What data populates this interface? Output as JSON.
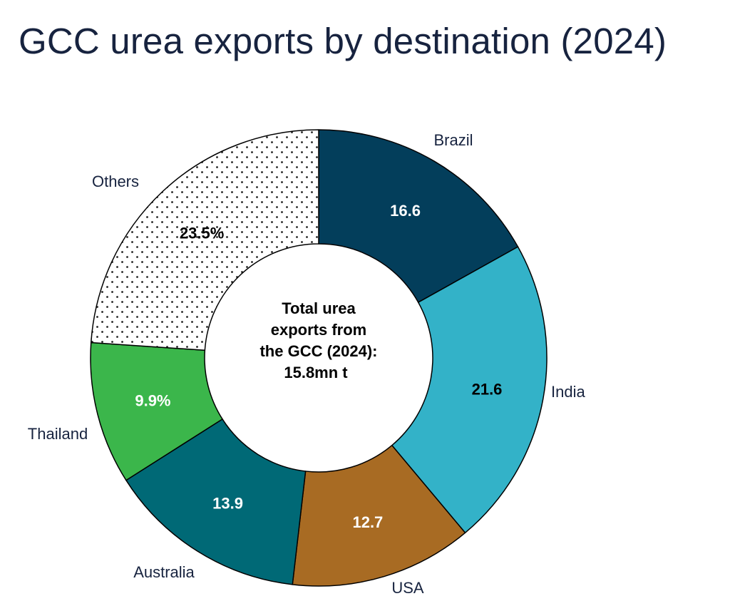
{
  "chart_data": {
    "type": "pie",
    "title": "GCC urea exports by destination (2024)",
    "center_text": [
      "Total urea",
      "exports from",
      "the GCC (2024):",
      "15.8mn t"
    ],
    "unit": "%",
    "slices": [
      {
        "label": "Brazil",
        "value": 16.6,
        "value_label": "16.6",
        "color": "#033e5b",
        "text_color": "#ffffff"
      },
      {
        "label": "India",
        "value": 21.6,
        "value_label": "21.6",
        "color": "#33b2c8",
        "text_color": "#000000"
      },
      {
        "label": "USA",
        "value": 12.7,
        "value_label": "12.7",
        "color": "#a86b23",
        "text_color": "#ffffff"
      },
      {
        "label": "Australia",
        "value": 13.9,
        "value_label": "13.9",
        "color": "#006976",
        "text_color": "#ffffff"
      },
      {
        "label": "Thailand",
        "value": 9.9,
        "value_label": "9.9%",
        "color": "#3bb64b",
        "text_color": "#ffffff"
      },
      {
        "label": "Others",
        "value": 23.5,
        "value_label": "23.5%",
        "color": "dotted",
        "text_color": "#000000"
      }
    ],
    "legend": "none"
  }
}
